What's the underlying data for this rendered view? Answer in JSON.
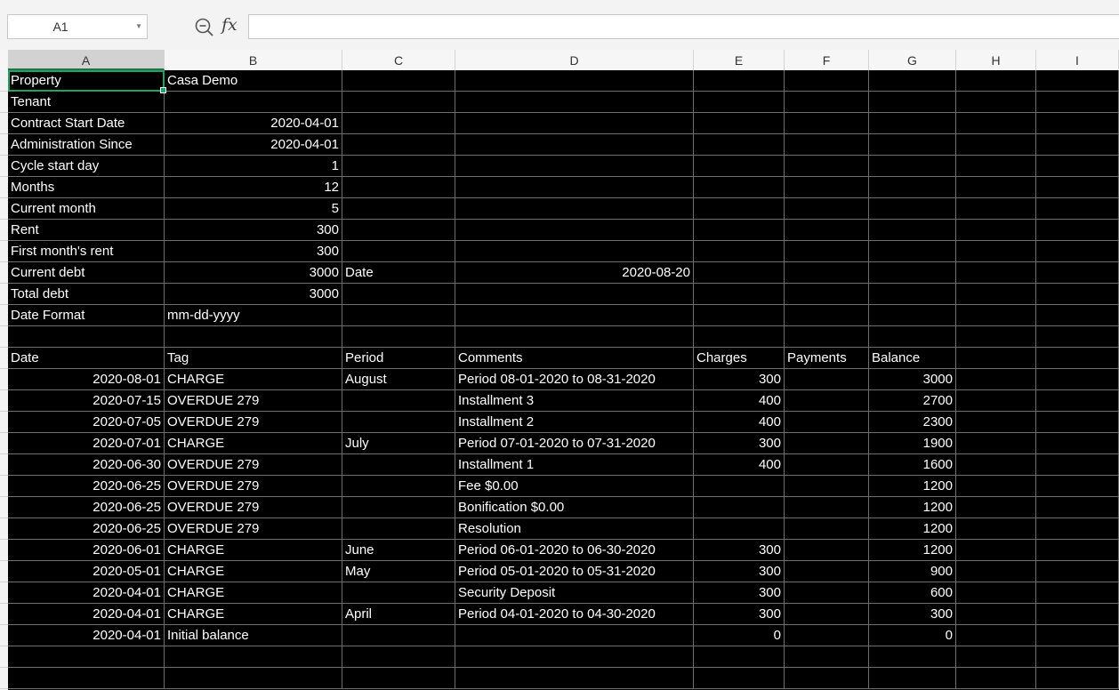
{
  "formula_bar": {
    "name_box": "A1",
    "formula": "",
    "fx_label": "fx",
    "zoom_icon": "zoom-icon"
  },
  "columns": [
    "A",
    "B",
    "C",
    "D",
    "E",
    "F",
    "G",
    "H",
    "I"
  ],
  "active_cell": "A1",
  "colors": {
    "cell_background": "#000000",
    "cell_text": "#ffffff",
    "selection": "#21a366"
  },
  "summary": [
    {
      "label": "Property",
      "value": "Casa Demo"
    },
    {
      "label": "Tenant",
      "value": ""
    },
    {
      "label": "Contract Start Date",
      "value": "2020-04-01"
    },
    {
      "label": "Administration Since",
      "value": "2020-04-01"
    },
    {
      "label": "Cycle start day",
      "value": "1"
    },
    {
      "label": "Months",
      "value": "12"
    },
    {
      "label": "Current month",
      "value": "5"
    },
    {
      "label": "Rent",
      "value": "300"
    },
    {
      "label": "First month's rent",
      "value": "300"
    },
    {
      "label": "Current debt",
      "value": "3000",
      "extra_label": "Date",
      "extra_value": "2020-08-20"
    },
    {
      "label": "Total debt",
      "value": "3000"
    },
    {
      "label": "Date Format",
      "value": "mm-dd-yyyy"
    }
  ],
  "ledger": {
    "headers": [
      "Date",
      "Tag",
      "Period",
      "Comments",
      "Charges",
      "Payments",
      "Balance"
    ],
    "rows": [
      [
        "2020-08-01",
        "CHARGE",
        "August",
        "Period 08-01-2020 to 08-31-2020",
        "300",
        "",
        "3000"
      ],
      [
        "2020-07-15",
        "OVERDUE 279",
        "",
        "Installment 3",
        "400",
        "",
        "2700"
      ],
      [
        "2020-07-05",
        "OVERDUE 279",
        "",
        "Installment 2",
        "400",
        "",
        "2300"
      ],
      [
        "2020-07-01",
        "CHARGE",
        "July",
        "Period 07-01-2020 to 07-31-2020",
        "300",
        "",
        "1900"
      ],
      [
        "2020-06-30",
        "OVERDUE 279",
        "",
        "Installment 1",
        "400",
        "",
        "1600"
      ],
      [
        "2020-06-25",
        "OVERDUE 279",
        "",
        "Fee $0.00",
        "",
        "",
        "1200"
      ],
      [
        "2020-06-25",
        "OVERDUE 279",
        "",
        "Bonification $0.00",
        "",
        "",
        "1200"
      ],
      [
        "2020-06-25",
        "OVERDUE 279",
        "",
        "Resolution",
        "",
        "",
        "1200"
      ],
      [
        "2020-06-01",
        "CHARGE",
        "June",
        "Period 06-01-2020 to 06-30-2020",
        "300",
        "",
        "1200"
      ],
      [
        "2020-05-01",
        "CHARGE",
        "May",
        "Period 05-01-2020 to 05-31-2020",
        "300",
        "",
        "900"
      ],
      [
        "2020-04-01",
        "CHARGE",
        "",
        "Security Deposit",
        "300",
        "",
        "600"
      ],
      [
        "2020-04-01",
        "CHARGE",
        "April",
        "Period 04-01-2020 to 04-30-2020",
        "300",
        "",
        "300"
      ],
      [
        "2020-04-01",
        "Initial balance",
        "",
        "",
        "0",
        "",
        "0"
      ]
    ]
  }
}
